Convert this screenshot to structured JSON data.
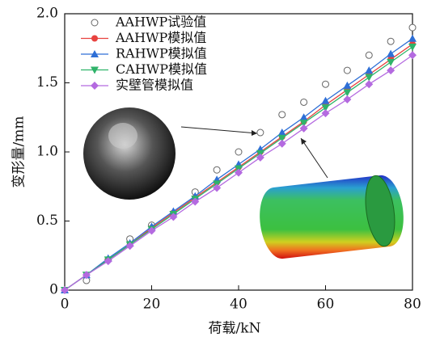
{
  "chart_data": {
    "type": "line",
    "x_label": "荷载/kN",
    "y_label": "变形量/mm",
    "x": [
      0,
      5,
      10,
      15,
      20,
      25,
      30,
      35,
      40,
      45,
      50,
      55,
      60,
      65,
      70,
      75,
      80
    ],
    "series": [
      {
        "name": "AAHWP试验值",
        "color": "#666666",
        "marker": "open-circle",
        "line": false,
        "values": [
          null,
          0.07,
          0.22,
          0.37,
          0.47,
          0.55,
          0.71,
          0.87,
          1.0,
          1.14,
          1.27,
          1.36,
          1.49,
          1.59,
          1.7,
          1.8,
          1.9
        ]
      },
      {
        "name": "AAHWP模拟值",
        "color": "#e8423f",
        "marker": "circle",
        "line": true,
        "values": [
          0,
          0.11,
          0.22,
          0.33,
          0.45,
          0.56,
          0.67,
          0.78,
          0.89,
          1.0,
          1.11,
          1.22,
          1.34,
          1.45,
          1.56,
          1.67,
          1.78
        ]
      },
      {
        "name": "RAHWP模拟值",
        "color": "#2e6fd6",
        "marker": "triangle",
        "line": true,
        "values": [
          0,
          0.11,
          0.23,
          0.34,
          0.46,
          0.57,
          0.68,
          0.8,
          0.91,
          1.02,
          1.14,
          1.25,
          1.37,
          1.48,
          1.59,
          1.71,
          1.82
        ]
      },
      {
        "name": "CAHWP模拟值",
        "color": "#2fb36a",
        "marker": "triangle-down",
        "line": true,
        "values": [
          0,
          0.11,
          0.22,
          0.33,
          0.44,
          0.55,
          0.66,
          0.77,
          0.88,
          0.99,
          1.1,
          1.21,
          1.32,
          1.43,
          1.54,
          1.65,
          1.76
        ]
      },
      {
        "name": "实壁管模拟值",
        "color": "#b46ae0",
        "marker": "diamond",
        "line": true,
        "values": [
          0,
          0.11,
          0.21,
          0.32,
          0.43,
          0.53,
          0.64,
          0.74,
          0.85,
          0.96,
          1.06,
          1.17,
          1.28,
          1.38,
          1.49,
          1.59,
          1.7
        ]
      }
    ],
    "xlim": [
      0,
      80
    ],
    "xticks": [
      0,
      20,
      40,
      60,
      80
    ],
    "ylim": [
      0,
      2
    ],
    "yticks": [
      0,
      0.5,
      {
        "value": 1,
        "label": "1.0"
      },
      1.5,
      {
        "value": 2,
        "label": "2.0"
      }
    ],
    "legend": "upper-left"
  }
}
